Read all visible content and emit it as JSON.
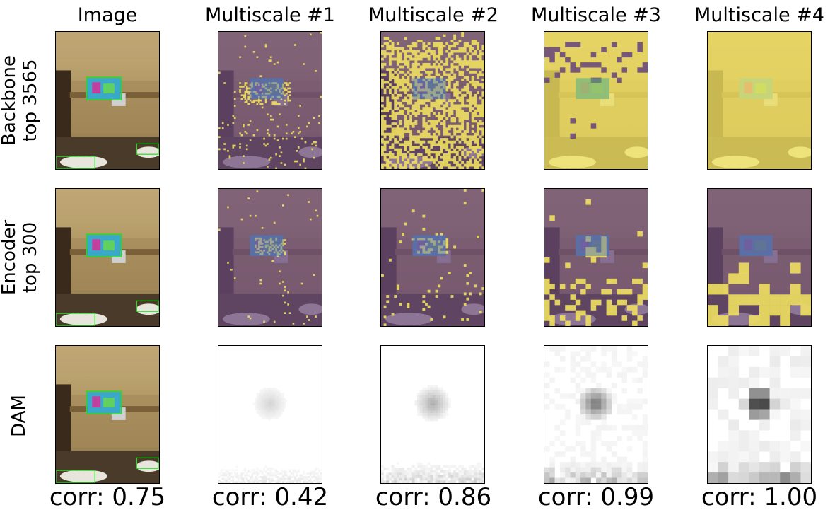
{
  "columns": [
    "Image",
    "Multiscale #1",
    "Multiscale #2",
    "Multiscale #3",
    "Multiscale #4"
  ],
  "rows": [
    {
      "label_line1": "Backbone",
      "label_line2": "top 3565"
    },
    {
      "label_line1": "Encoder",
      "label_line2": "top 300"
    },
    {
      "label_line1": "DAM",
      "label_line2": ""
    }
  ],
  "corr": [
    "corr: 0.75",
    "corr: 0.42",
    "corr: 0.86",
    "corr: 0.99",
    "corr: 1.00"
  ],
  "colors": {
    "mask_on": "#f0e060",
    "mask_off": "#6a4a7a",
    "box": "#22dd22",
    "dam_dark": "#111111"
  }
}
